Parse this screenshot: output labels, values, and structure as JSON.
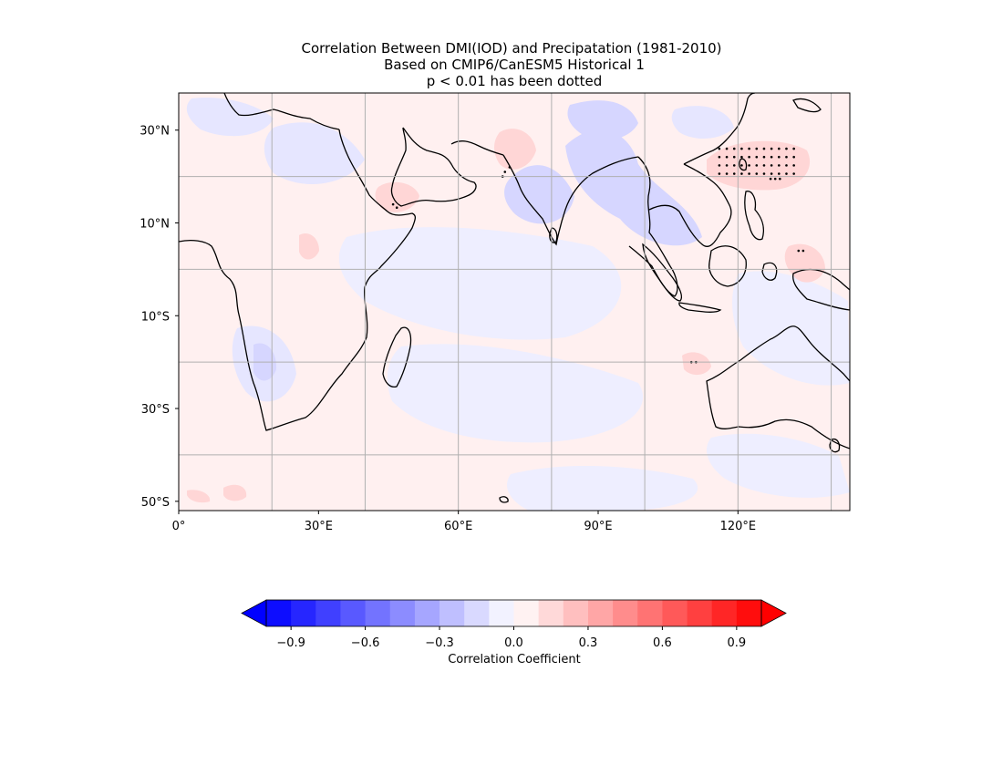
{
  "title": {
    "line1": "Correlation Between DMI(IOD) and Precipatation (1981-2010)",
    "line2": "Based on CMIP6/CanESM5 Historical 1",
    "line3": "p < 0.01 has been dotted"
  },
  "map": {
    "lon_range": [
      0,
      144
    ],
    "lat_range": [
      -52,
      38
    ],
    "x_ticks": [
      {
        "lon": 0,
        "label": "0°"
      },
      {
        "lon": 30,
        "label": "30°E"
      },
      {
        "lon": 60,
        "label": "60°E"
      },
      {
        "lon": 90,
        "label": "90°E"
      },
      {
        "lon": 120,
        "label": "120°E"
      }
    ],
    "y_ticks": [
      {
        "lat": 30,
        "label": "30°N"
      },
      {
        "lat": 10,
        "label": "10°N"
      },
      {
        "lat": -10,
        "label": "10°S"
      },
      {
        "lat": -30,
        "label": "30°S"
      },
      {
        "lat": -50,
        "label": "50°S"
      }
    ],
    "gridlines_lon": [
      20,
      40,
      60,
      80,
      100,
      120,
      140
    ],
    "gridlines_lat": [
      20,
      0,
      -20,
      -40
    ],
    "background_color": "#fff0f0",
    "significance_marker": "dots"
  },
  "colorbar": {
    "label": "Correlation Coefficient",
    "min": -1.0,
    "max": 1.0,
    "step": 0.1,
    "extend": "both",
    "min_color": "#0000ff",
    "max_color": "#ff0000",
    "ticks": [
      {
        "value": -0.9,
        "label": "−0.9"
      },
      {
        "value": -0.6,
        "label": "−0.6"
      },
      {
        "value": -0.3,
        "label": "−0.3"
      },
      {
        "value": 0.0,
        "label": "0.0"
      },
      {
        "value": 0.3,
        "label": "0.3"
      },
      {
        "value": 0.6,
        "label": "0.6"
      },
      {
        "value": 0.9,
        "label": "0.9"
      }
    ]
  }
}
